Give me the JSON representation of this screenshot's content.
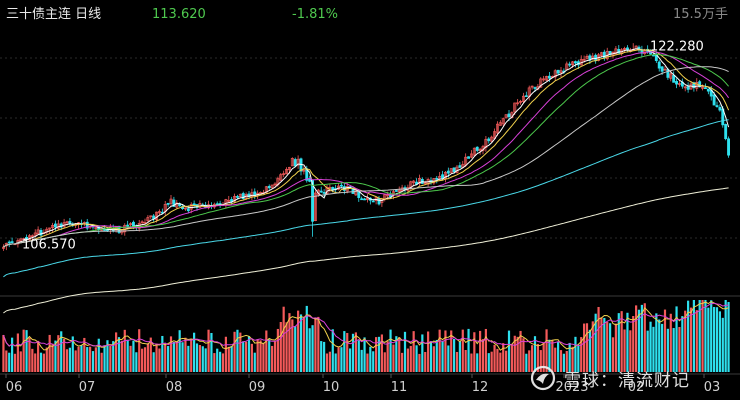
{
  "header": {
    "instrument": "三十债主连 日线",
    "price": "113.620",
    "change_pct": "-1.81%",
    "volume": "15.5万手"
  },
  "colors": {
    "background": "#000000",
    "up": "#f45a5a",
    "down": "#2ee0ee",
    "price_text": "#4fc94f",
    "change_text": "#4fc94f",
    "volume_text": "#8a8a8a",
    "ma5": "#ffffff",
    "ma10": "#f0d04c",
    "ma20": "#d840d8",
    "ma30": "#4cc84c",
    "ma60": "#c8c8c8",
    "ma120": "#4ad8e8",
    "ma250": "#f0f0d8"
  },
  "chart_data": [
    {
      "type": "candlestick",
      "title": "三十债主连 日线",
      "x_ticks": [
        "06",
        "07",
        "08",
        "09",
        "10",
        "11",
        "12",
        "2023",
        "02",
        "03"
      ],
      "ylim": [
        102.5,
        123.5
      ],
      "annotations": [
        {
          "label": "122.280",
          "value": 122.28,
          "kind": "high"
        },
        {
          "label": "106.570",
          "value": 106.57,
          "kind": "low"
        }
      ],
      "moving_averages": [
        "ma5",
        "ma10",
        "ma20",
        "ma30",
        "ma60",
        "ma120",
        "ma250"
      ],
      "grid": true,
      "last_close": 113.62
    },
    {
      "type": "bar",
      "title": "volume",
      "x_ticks": [
        "06",
        "07",
        "08",
        "09",
        "10",
        "11",
        "12",
        "2023",
        "02",
        "03"
      ],
      "moving_averages": [
        "ma5",
        "ma10"
      ],
      "grid": false
    }
  ],
  "watermark": {
    "logo": "snowball-logo",
    "text": "雪球：清流财记"
  }
}
